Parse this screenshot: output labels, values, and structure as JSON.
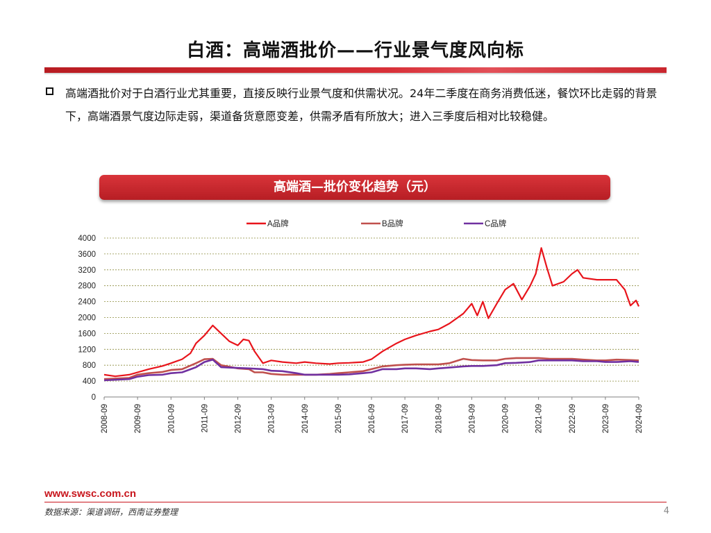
{
  "slide": {
    "title": "白酒：高端酒批价——行业景气度风向标",
    "bullet": "高端酒批价对于白酒行业尤其重要，直接反映行业景气度和供需状况。24年二季度在商务消费低迷，餐饮环比走弱的背景下，高端酒景气度边际走弱，渠道备货意愿变差，供需矛盾有所放大；进入三季度后相对比较稳健。",
    "chart_header": "高端酒—批价变化趋势（元）"
  },
  "footer": {
    "url": "www.swsc.com.cn",
    "source": "数据来源：渠道调研，西南证券整理",
    "page": "4"
  },
  "colors": {
    "accent": "#c8161d",
    "series_a": "#e8141b",
    "series_b": "#c0504d",
    "series_c": "#7030a0"
  },
  "chart_data": {
    "type": "line",
    "title": "高端酒—批价变化趋势（元）",
    "legend_position": "top",
    "grid": true,
    "ylim": [
      0,
      4000
    ],
    "y_ticks": [
      0,
      400,
      800,
      1200,
      1600,
      2000,
      2400,
      2800,
      3200,
      3600,
      4000
    ],
    "x_ticks": [
      "2008-09",
      "2009-09",
      "2010-09",
      "2011-09",
      "2012-09",
      "2013-09",
      "2014-09",
      "2015-09",
      "2016-09",
      "2017-09",
      "2018-09",
      "2019-09",
      "2020-09",
      "2021-09",
      "2022-09",
      "2023-09",
      "2024-09"
    ],
    "x_range": [
      "2008-09",
      "2024-09"
    ],
    "series": [
      {
        "name": "A品牌",
        "color": "#e8141b",
        "points": [
          [
            "2008-09",
            560
          ],
          [
            "2009-01",
            520
          ],
          [
            "2009-06",
            560
          ],
          [
            "2009-09",
            620
          ],
          [
            "2010-01",
            700
          ],
          [
            "2010-06",
            780
          ],
          [
            "2010-09",
            850
          ],
          [
            "2011-01",
            950
          ],
          [
            "2011-04",
            1100
          ],
          [
            "2011-06",
            1350
          ],
          [
            "2011-09",
            1550
          ],
          [
            "2011-12",
            1800
          ],
          [
            "2012-03",
            1600
          ],
          [
            "2012-06",
            1400
          ],
          [
            "2012-09",
            1300
          ],
          [
            "2012-11",
            1450
          ],
          [
            "2013-01",
            1420
          ],
          [
            "2013-03",
            1150
          ],
          [
            "2013-06",
            850
          ],
          [
            "2013-09",
            920
          ],
          [
            "2014-01",
            880
          ],
          [
            "2014-06",
            850
          ],
          [
            "2014-09",
            880
          ],
          [
            "2015-01",
            850
          ],
          [
            "2015-06",
            830
          ],
          [
            "2015-09",
            850
          ],
          [
            "2016-01",
            860
          ],
          [
            "2016-06",
            880
          ],
          [
            "2016-09",
            950
          ],
          [
            "2017-01",
            1150
          ],
          [
            "2017-06",
            1350
          ],
          [
            "2017-09",
            1450
          ],
          [
            "2018-01",
            1550
          ],
          [
            "2018-06",
            1650
          ],
          [
            "2018-09",
            1700
          ],
          [
            "2019-01",
            1850
          ],
          [
            "2019-06",
            2100
          ],
          [
            "2019-09",
            2350
          ],
          [
            "2019-11",
            2050
          ],
          [
            "2020-01",
            2400
          ],
          [
            "2020-03",
            1980
          ],
          [
            "2020-06",
            2350
          ],
          [
            "2020-09",
            2700
          ],
          [
            "2020-12",
            2850
          ],
          [
            "2021-03",
            2450
          ],
          [
            "2021-06",
            2800
          ],
          [
            "2021-08",
            3100
          ],
          [
            "2021-10",
            3750
          ],
          [
            "2021-12",
            3250
          ],
          [
            "2022-02",
            2800
          ],
          [
            "2022-06",
            2900
          ],
          [
            "2022-09",
            3100
          ],
          [
            "2022-11",
            3200
          ],
          [
            "2023-01",
            3000
          ],
          [
            "2023-06",
            2950
          ],
          [
            "2023-09",
            2950
          ],
          [
            "2024-01",
            2950
          ],
          [
            "2024-04",
            2700
          ],
          [
            "2024-06",
            2300
          ],
          [
            "2024-08",
            2430
          ],
          [
            "2024-09",
            2280
          ]
        ]
      },
      {
        "name": "B品牌",
        "color": "#c0504d",
        "points": [
          [
            "2008-09",
            450
          ],
          [
            "2009-06",
            480
          ],
          [
            "2009-09",
            560
          ],
          [
            "2010-01",
            600
          ],
          [
            "2010-06",
            630
          ],
          [
            "2010-09",
            680
          ],
          [
            "2011-01",
            700
          ],
          [
            "2011-06",
            850
          ],
          [
            "2011-09",
            950
          ],
          [
            "2011-12",
            960
          ],
          [
            "2012-03",
            800
          ],
          [
            "2012-09",
            720
          ],
          [
            "2013-01",
            700
          ],
          [
            "2013-03",
            620
          ],
          [
            "2013-06",
            620
          ],
          [
            "2013-09",
            580
          ],
          [
            "2014-01",
            560
          ],
          [
            "2014-06",
            560
          ],
          [
            "2014-09",
            560
          ],
          [
            "2015-01",
            560
          ],
          [
            "2015-06",
            580
          ],
          [
            "2015-09",
            600
          ],
          [
            "2016-01",
            620
          ],
          [
            "2016-06",
            650
          ],
          [
            "2016-09",
            700
          ],
          [
            "2017-01",
            770
          ],
          [
            "2017-06",
            800
          ],
          [
            "2017-09",
            810
          ],
          [
            "2018-01",
            820
          ],
          [
            "2018-06",
            820
          ],
          [
            "2018-09",
            820
          ],
          [
            "2019-01",
            850
          ],
          [
            "2019-06",
            960
          ],
          [
            "2019-09",
            930
          ],
          [
            "2020-01",
            920
          ],
          [
            "2020-06",
            920
          ],
          [
            "2020-09",
            960
          ],
          [
            "2021-01",
            980
          ],
          [
            "2021-06",
            980
          ],
          [
            "2021-09",
            980
          ],
          [
            "2022-01",
            960
          ],
          [
            "2022-06",
            960
          ],
          [
            "2022-09",
            960
          ],
          [
            "2023-01",
            940
          ],
          [
            "2023-06",
            920
          ],
          [
            "2023-09",
            920
          ],
          [
            "2024-01",
            940
          ],
          [
            "2024-06",
            930
          ],
          [
            "2024-09",
            920
          ]
        ]
      },
      {
        "name": "C品牌",
        "color": "#7030a0",
        "points": [
          [
            "2008-09",
            420
          ],
          [
            "2009-06",
            450
          ],
          [
            "2009-09",
            510
          ],
          [
            "2010-01",
            550
          ],
          [
            "2010-06",
            560
          ],
          [
            "2010-09",
            600
          ],
          [
            "2011-01",
            620
          ],
          [
            "2011-06",
            750
          ],
          [
            "2011-09",
            880
          ],
          [
            "2011-12",
            940
          ],
          [
            "2012-03",
            750
          ],
          [
            "2012-09",
            730
          ],
          [
            "2013-01",
            720
          ],
          [
            "2013-06",
            700
          ],
          [
            "2013-09",
            660
          ],
          [
            "2014-01",
            650
          ],
          [
            "2014-06",
            600
          ],
          [
            "2014-09",
            560
          ],
          [
            "2015-01",
            560
          ],
          [
            "2015-06",
            560
          ],
          [
            "2015-09",
            560
          ],
          [
            "2016-01",
            570
          ],
          [
            "2016-06",
            600
          ],
          [
            "2016-09",
            620
          ],
          [
            "2017-01",
            700
          ],
          [
            "2017-06",
            700
          ],
          [
            "2017-09",
            720
          ],
          [
            "2018-01",
            720
          ],
          [
            "2018-06",
            700
          ],
          [
            "2018-09",
            720
          ],
          [
            "2019-01",
            740
          ],
          [
            "2019-06",
            770
          ],
          [
            "2019-09",
            780
          ],
          [
            "2020-01",
            780
          ],
          [
            "2020-06",
            800
          ],
          [
            "2020-09",
            850
          ],
          [
            "2021-01",
            860
          ],
          [
            "2021-06",
            880
          ],
          [
            "2021-09",
            920
          ],
          [
            "2022-01",
            920
          ],
          [
            "2022-06",
            920
          ],
          [
            "2022-09",
            920
          ],
          [
            "2023-01",
            900
          ],
          [
            "2023-06",
            900
          ],
          [
            "2023-09",
            880
          ],
          [
            "2024-01",
            880
          ],
          [
            "2024-06",
            900
          ],
          [
            "2024-09",
            880
          ]
        ]
      }
    ]
  }
}
